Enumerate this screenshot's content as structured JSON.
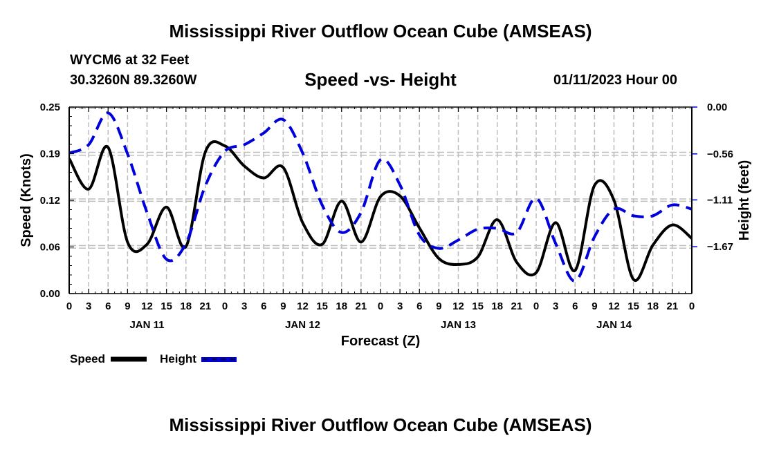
{
  "header": {
    "main_title": "Mississippi River Outflow Ocean Cube (AMSEAS)",
    "station": "WYCM6 at 32 Feet",
    "coords": "30.3260N  89.3260W",
    "subtitle": "Speed -vs- Height",
    "datetime": "01/11/2023 Hour 00",
    "bottom_title": "Mississippi River Outflow Ocean Cube (AMSEAS)"
  },
  "chart_data": {
    "type": "line",
    "title": "Speed -vs- Height",
    "xlabel": "Forecast (Z)",
    "ylabel": "Speed (Knots)",
    "ylabel_right": "Height (feet)",
    "x_hours_range": [
      0,
      96
    ],
    "x_tick_labels": [
      "0",
      "3",
      "6",
      "9",
      "12",
      "15",
      "18",
      "21",
      "0",
      "3",
      "6",
      "9",
      "12",
      "15",
      "18",
      "21",
      "0",
      "3",
      "6",
      "9",
      "12",
      "15",
      "18",
      "21",
      "0",
      "3",
      "6",
      "9",
      "12",
      "15",
      "18",
      "21",
      "0"
    ],
    "day_labels": [
      {
        "label": "JAN 11",
        "center_hour": 12
      },
      {
        "label": "JAN 12",
        "center_hour": 36
      },
      {
        "label": "JAN 13",
        "center_hour": 60
      },
      {
        "label": "JAN 14",
        "center_hour": 84
      }
    ],
    "ylim_left": [
      0,
      0.25
    ],
    "y_ticks_left": [
      {
        "value": 0.0,
        "label": "0.00"
      },
      {
        "value": 0.0625,
        "label": "0.06"
      },
      {
        "value": 0.125,
        "label": "0.12"
      },
      {
        "value": 0.1875,
        "label": "0.19"
      },
      {
        "value": 0.25,
        "label": "0.25"
      }
    ],
    "ylim_right": [
      -2.23,
      0
    ],
    "y_ticks_right": [
      {
        "value": 0.0,
        "label": "0.00"
      },
      {
        "value": -0.56,
        "label": "−0.56"
      },
      {
        "value": -1.11,
        "label": "−1.11"
      },
      {
        "value": -1.67,
        "label": "−1.67"
      }
    ],
    "grid": true,
    "legend_position": "bottom-left",
    "series": [
      {
        "name": "Speed",
        "axis": "left",
        "color": "#000000",
        "style": "solid",
        "hours": [
          0,
          3,
          6,
          9,
          12,
          15,
          18,
          21,
          24,
          27,
          30,
          33,
          36,
          39,
          42,
          45,
          48,
          51,
          54,
          57,
          60,
          63,
          66,
          69,
          72,
          75,
          78,
          81,
          84,
          87,
          90,
          93,
          96
        ],
        "values": [
          0.181,
          0.14,
          0.196,
          0.069,
          0.066,
          0.116,
          0.063,
          0.19,
          0.198,
          0.171,
          0.155,
          0.169,
          0.095,
          0.066,
          0.124,
          0.069,
          0.13,
          0.131,
          0.088,
          0.047,
          0.039,
          0.049,
          0.099,
          0.042,
          0.028,
          0.095,
          0.031,
          0.145,
          0.125,
          0.019,
          0.065,
          0.092,
          0.074
        ]
      },
      {
        "name": "Height",
        "axis": "right",
        "color": "#0000dd",
        "style": "dashed",
        "hours": [
          0,
          3,
          6,
          9,
          12,
          15,
          18,
          21,
          24,
          27,
          30,
          33,
          36,
          39,
          42,
          45,
          48,
          51,
          54,
          57,
          60,
          63,
          66,
          69,
          72,
          75,
          78,
          81,
          84,
          87,
          90,
          93,
          96
        ],
        "values": [
          -0.55,
          -0.45,
          -0.07,
          -0.56,
          -1.26,
          -1.82,
          -1.63,
          -0.94,
          -0.53,
          -0.45,
          -0.31,
          -0.15,
          -0.55,
          -1.17,
          -1.5,
          -1.26,
          -0.63,
          -0.93,
          -1.53,
          -1.69,
          -1.59,
          -1.46,
          -1.45,
          -1.5,
          -1.09,
          -1.63,
          -2.08,
          -1.55,
          -1.22,
          -1.3,
          -1.3,
          -1.17,
          -1.22
        ]
      }
    ]
  },
  "legend": {
    "speed_label": "Speed",
    "height_label": "Height"
  }
}
